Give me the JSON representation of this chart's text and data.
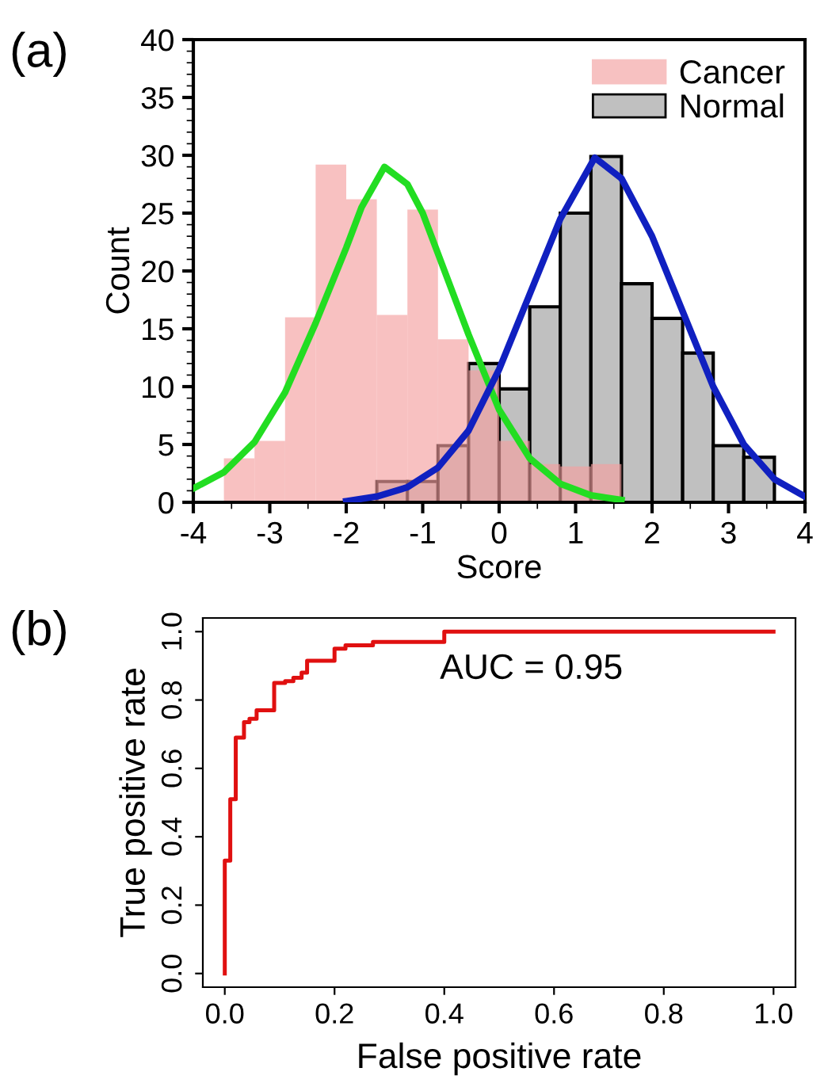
{
  "chart_data": [
    {
      "type": "histogram",
      "xlabel": "Score",
      "ylabel": "Count",
      "annotations": [
        "(a)"
      ],
      "xlim": [
        -4,
        4
      ],
      "ylim": [
        0,
        40
      ],
      "xticks": [
        -4,
        -3,
        -2,
        -1,
        0,
        1,
        2,
        3,
        4
      ],
      "yticks": [
        0,
        5,
        10,
        15,
        20,
        25,
        30,
        35,
        40
      ],
      "legend": "top right",
      "grid": false,
      "series": [
        {
          "name": "Normal",
          "color": "#c0c0c0",
          "bins": [
            -1.6,
            -1.2,
            -0.8,
            -0.4,
            0.0,
            0.4,
            0.8,
            1.2,
            1.6,
            2.0,
            2.4,
            2.8,
            3.2,
            3.6
          ],
          "values": [
            1.8,
            1.8,
            4.9,
            12,
            9.8,
            16.9,
            25,
            29.9,
            18.9,
            15.9,
            12.9,
            4.9,
            3.9
          ]
        },
        {
          "name": "Cancer",
          "color": "#f4a0a0",
          "bins": [
            -3.6,
            -3.2,
            -2.8,
            -2.4,
            -2.0,
            -1.6,
            -1.2,
            -0.8,
            -0.4,
            0.0,
            0.4,
            0.8,
            1.2,
            1.6
          ],
          "values": [
            3.8,
            5.3,
            16,
            29.2,
            26.2,
            16.2,
            25.3,
            14.1,
            11.4,
            5.3,
            3.3,
            3.1,
            3.3
          ]
        },
        {
          "type": "line",
          "color": "#22dd22",
          "x": [
            -4,
            -3.6,
            -3.2,
            -2.8,
            -2.4,
            -2.0,
            -1.8,
            -1.5,
            -1.2,
            -1.0,
            -0.8,
            -0.4,
            0,
            0.4,
            0.8,
            1.2,
            1.6
          ],
          "values": [
            1.2,
            2.6,
            5.2,
            9.5,
            15.5,
            22,
            25.5,
            29,
            27.5,
            25,
            21.5,
            14.5,
            8,
            3.8,
            1.6,
            0.6,
            0.2
          ]
        },
        {
          "type": "line",
          "color": "#1020c0",
          "x": [
            -2,
            -1.6,
            -1.2,
            -0.8,
            -0.4,
            0,
            0.4,
            0.8,
            1.25,
            1.6,
            2.0,
            2.4,
            2.8,
            3.2,
            3.6,
            4
          ],
          "values": [
            0.1,
            0.5,
            1.3,
            3,
            6.2,
            11.5,
            18,
            24.5,
            29.8,
            28,
            23,
            16.5,
            10,
            5,
            2,
            0.5
          ]
        }
      ]
    },
    {
      "type": "step",
      "xlabel": "False positive rate",
      "ylabel": "True positive rate",
      "annotations": [
        "(b)",
        "AUC = 0.95"
      ],
      "xlim": [
        -0.04,
        1.04
      ],
      "ylim": [
        -0.04,
        1.04
      ],
      "xticks": [
        {
          "value": 0,
          "label": "0.0"
        },
        0.2,
        0.4,
        0.6,
        0.8,
        {
          "value": 1,
          "label": "1.0"
        }
      ],
      "yticks": [
        {
          "value": 0,
          "label": "0.0"
        },
        0.2,
        0.4,
        0.6,
        0.8,
        {
          "value": 1,
          "label": "1.0"
        }
      ],
      "grid": false,
      "series": [
        {
          "color": "#e01010",
          "x": [
            0,
            0,
            0.01,
            0.02,
            0.035,
            0.045,
            0.058,
            0.09,
            0.11,
            0.125,
            0.14,
            0.15,
            0.2,
            0.22,
            0.27,
            0.4,
            1.0
          ],
          "values": [
            0,
            0.33,
            0.51,
            0.69,
            0.735,
            0.745,
            0.77,
            0.85,
            0.855,
            0.865,
            0.88,
            0.915,
            0.95,
            0.96,
            0.97,
            1.0,
            1.0
          ]
        }
      ]
    }
  ]
}
